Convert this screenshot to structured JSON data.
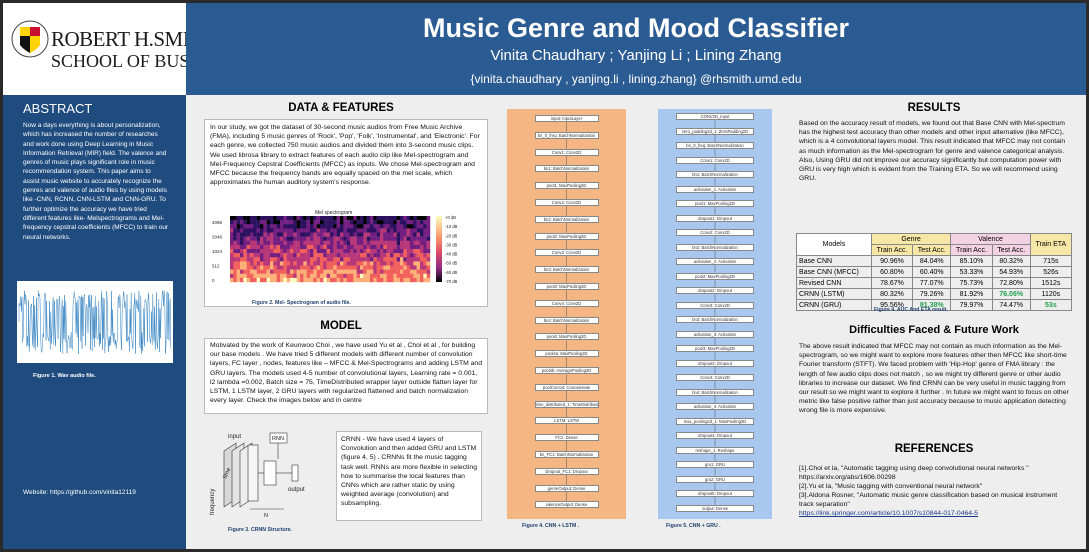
{
  "header": {
    "title": "Music Genre and Mood Classifier",
    "authors": "Vinita Chaudhary ; Yanjing Li ; Lining Zhang",
    "emails": "{vinita.chaudhary , yanjing.li , lining.zhang} @rhsmith.umd.edu"
  },
  "logo": {
    "name": "ROBERT H.SMITH",
    "school": "SCHOOL OF BUSINESS"
  },
  "abstract": {
    "title": "ABSTRACT",
    "body": "Now a days everything is about personalization, which has increased the number of researches and work done using Deep Learning in Music Information Retrieval (MIR) field. The valence and genres of music plays significant role in music recommendation system. This paper aims to assist music website to accurately recognize the genres and valence of audio files by using models like -CNN, RCNN, CNN-LSTM and CNN-GRU. To further optimize the accuracy we have tried different features like- Melspectrograms and Mel-frequency cepstral coefficients (MFCC) to train our neural networks.",
    "figure1_caption": "Figure 1. Wav audio file.",
    "website": "Website: https://github.com/vinita12119"
  },
  "data_features": {
    "title": "DATA & FEATURES",
    "body": "In our study, we got the dataset of 30-second music audios from Free Music Archive (FMA), including 5 music genres of 'Rock', 'Pop', 'Folk', 'Instrumental', and 'Electronic'. For each genre, we collected 750 music audios and divided them into 3-second music clips. We used librosa library to extract features of each audio clip like Mel-spectrogram and Mel-Frequency Cepstral Coefficients (MFCC) as inputs. We chose Mel-spectrogram and MFCC because the frequency bands are equally spaced on the mel scale, which approximates the human auditory system's response.",
    "spectrogram_title": "Mel spectrogram",
    "spectrogram_yticks": [
      "4096",
      "2048",
      "1024",
      "512",
      "0"
    ],
    "spectrogram_cbar": [
      "+0 dB",
      "-10 dB",
      "-20 dB",
      "-30 dB",
      "-40 dB",
      "-50 dB",
      "-60 dB",
      "-70 dB"
    ],
    "figure2_caption": "Figure 2. Mel- Spectrogram of audio file."
  },
  "model": {
    "title": "MODEL",
    "body": "Motivated by the work of Keunwoo Choi , we have used Yu et al , Choi et al , for building our base models . We have tried 5 different models with different number of convolution layers, FC layer , nodes, features like – MFCC & Mel-Spectrograms and adding LSTM and GRU layers. The models used 4-5 number of convolutional layers, Learning rate = 0.001, l2 lambda =0.002, Batch size = 75, TimeDistributed wrapper layer outside flatten layer for LSTM, 1 LSTM layer, 2 GRU layers with regularized flattened and batch normalization every layer. Check the images below and in centre",
    "crnn_text": "CRNN - We have used 4 layers of Convolution and then added GRU and LSTM (figure 4, 5) . CRNNs fit the music tagging task well. RNNs are more flexible in selecting how to summarise the local features than CNNs which are rather static by using weighted average (convolution) and subsampling.",
    "diagram_labels": {
      "input": "input",
      "rnn": "RNN",
      "output": "output",
      "time": "time",
      "frequency": "frequency",
      "n": "N"
    },
    "figure3_caption": "Figure 3. CRNN Structure."
  },
  "flowcharts": {
    "lstm_nodes": [
      "input: InputLayer",
      "bn_0_freq: BatchNormalization",
      "Conv1: Conv2D",
      "bn1: BatchNormalization",
      "pool1: MaxPooling2D",
      "Conv2: Conv2D",
      "bn2: BatchNormalization",
      "pool2: MaxPooling2D",
      "Conv3: Conv2D",
      "bn3: BatchNormalization",
      "pool3: MaxPooling2D",
      "Conv4: Conv2D",
      "bn4: BatchNormalization",
      "pool4: MaxPooling2D",
      "pool4a: MaxPooling2D",
      "pool4b: AveragePooling2D",
      "poolConcat: Concatenate",
      "time_distributed_1: TimeDistributed(Flatten)",
      "LSTM: LSTM",
      "FC1: Dense",
      "bn_FC1: BatchNormalization",
      "Dropout_FC1: Dropout",
      "genreOutput: Dense",
      "valenceOutput: Dense"
    ],
    "gru_nodes": [
      "CONV2D_input",
      "zero_padding2d_1: ZeroPadding2D",
      "bn_0_freq: BatchNormalization",
      "Conv1: Conv2D",
      "bn1: BatchNormalization",
      "activation_1: Activation",
      "pool1: MaxPooling2D",
      "dropout1: Dropout",
      "Conv2: Conv2D",
      "bn2: BatchNormalization",
      "activation_2: Activation",
      "pool2: MaxPooling2D",
      "dropout2: Dropout",
      "Conv3: Conv2D",
      "bn3: BatchNormalization",
      "activation_3: Activation",
      "pool3: MaxPooling2D",
      "dropout3: Dropout",
      "Conv4: Conv2D",
      "bn4: BatchNormalization",
      "activation_4: Activation",
      "max_pooling2d_1: MaxPooling2D",
      "dropout4: Dropout",
      "reshape_1: Reshape",
      "gru1: GRU",
      "gru2: GRU",
      "dropout5: Dropout",
      "output: Dense"
    ],
    "figure4_caption": "Figure 4. CNN + LSTM .",
    "figure5_caption": "Figure 5. CNN + GRU ."
  },
  "results": {
    "title": "RESULTS",
    "body": "Based on the accuracy result of models, we found out that Base CNN with Mel-spectrum has the highest test accuracy than other models and other input alternative (like MFCC), which is a 4 convolutional layers model. This result indicated that MFCC may not contain as much information as the Mel-spectrogram for genre and valence categorical analysis. Also, Using GRU did not improve our accuracy significantly but computation power with GRU is very high which is evident from the Training ETA. So we will recommend using GRU.",
    "table": {
      "col_models": "Models",
      "col_genre": "Genre",
      "col_valence": "Valence",
      "col_eta": "Train ETA",
      "sub_train": "Train Acc.",
      "sub_test": "Test Acc.",
      "rows": [
        {
          "model": "Base CNN",
          "g_train": "90.96%",
          "g_test": "84.04%",
          "v_train": "85.10%",
          "v_test": "80.32%",
          "eta": "715s"
        },
        {
          "model": "Base CNN (MFCC)",
          "g_train": "60.80%",
          "g_test": "60.40%",
          "v_train": "53.33%",
          "v_test": "54.93%",
          "eta": "526s"
        },
        {
          "model": "Revised CNN",
          "g_train": "78.67%",
          "g_test": "77.07%",
          "v_train": "75.73%",
          "v_test": "72.80%",
          "eta": "1512s"
        },
        {
          "model": "CRNN (LSTM)",
          "g_train": "80.32%",
          "g_test": "79.26%",
          "v_train": "81.92%",
          "v_test": "76.06%",
          "eta": "1120s"
        },
        {
          "model": "CRNN (GRU)",
          "g_train": "95.56%",
          "g_test": "81.38%",
          "v_train": "79.97%",
          "v_test": "74.47%",
          "eta": "53s"
        }
      ]
    },
    "figure6_caption": "Figure 4. AUC And ETA result."
  },
  "difficulties": {
    "title": "Difficulties Faced & Future Work",
    "body": "The above result indicated that MFCC may not contain as much information as the Mel-spectrogram, so we might want to explore more features other then MFCC like short-time Fourier transform (STFT). We faced problem with 'Hip-Hop' genre of FMA library : the length of few audio clips does not match , so we might try different genre or other audio libraries to increase our dataset. We find CRNN can be very useful in music tagging from our result so we might want to explore it further . In future we might want to focus on other metric like false positive rather than just accuracy because to music application detecting wrong file is more expensive."
  },
  "references": {
    "title": "REFERENCES",
    "items": [
      "[1].Choi et la, \"Automatic tagging using deep convolutional neural networks \" https://arxiv.org/abs/1606.00298",
      "[2].Yu et la, \"Music tagging with conventional neural network\"",
      "[3].Aldona Rosner, \"Automatic music genre classification based on musical instrument track separation\""
    ],
    "link": "https://link.springer.com/article/10.1007/s10844-017-0464-5"
  },
  "colors": {
    "header_blue": "#2b5b93",
    "left_blue": "#1f4b7e",
    "lstm_bg": "#f4b784",
    "gru_bg": "#a8c8ef",
    "gold": "#f7e7a6",
    "pink": "#f3d3e3",
    "green": "#1e9e4a"
  }
}
